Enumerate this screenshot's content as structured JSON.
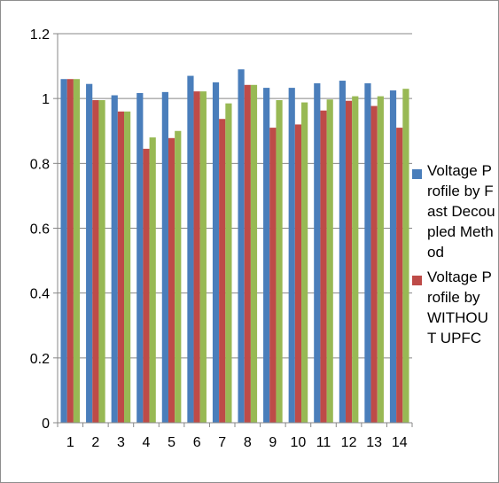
{
  "chart_data": {
    "type": "bar",
    "categories": [
      "1",
      "2",
      "3",
      "4",
      "5",
      "6",
      "7",
      "8",
      "9",
      "10",
      "11",
      "12",
      "13",
      "14"
    ],
    "series": [
      {
        "name": "Voltage Profile by Fast Decoupled Method",
        "color": "#4a7ebb",
        "values": [
          1.06,
          1.045,
          1.01,
          1.017,
          1.02,
          1.07,
          1.05,
          1.09,
          1.033,
          1.033,
          1.047,
          1.055,
          1.047,
          1.025
        ]
      },
      {
        "name": "Voltage Profile by WITHOUT UPFC",
        "color": "#be4b48",
        "values": [
          1.06,
          0.995,
          0.96,
          0.845,
          0.878,
          1.022,
          0.937,
          1.042,
          0.91,
          0.92,
          0.963,
          0.993,
          0.977,
          0.91
        ]
      },
      {
        "name": "",
        "color": "#98b954",
        "values": [
          1.06,
          0.995,
          0.96,
          0.88,
          0.9,
          1.022,
          0.985,
          1.042,
          0.995,
          0.988,
          0.997,
          1.007,
          1.007,
          1.03
        ]
      }
    ],
    "yticks": [
      "0",
      "0.2",
      "0.4",
      "0.6",
      "0.8",
      "1",
      "1.2"
    ],
    "ylim": [
      0,
      1.2
    ],
    "grid": true,
    "legend_position": "right"
  }
}
